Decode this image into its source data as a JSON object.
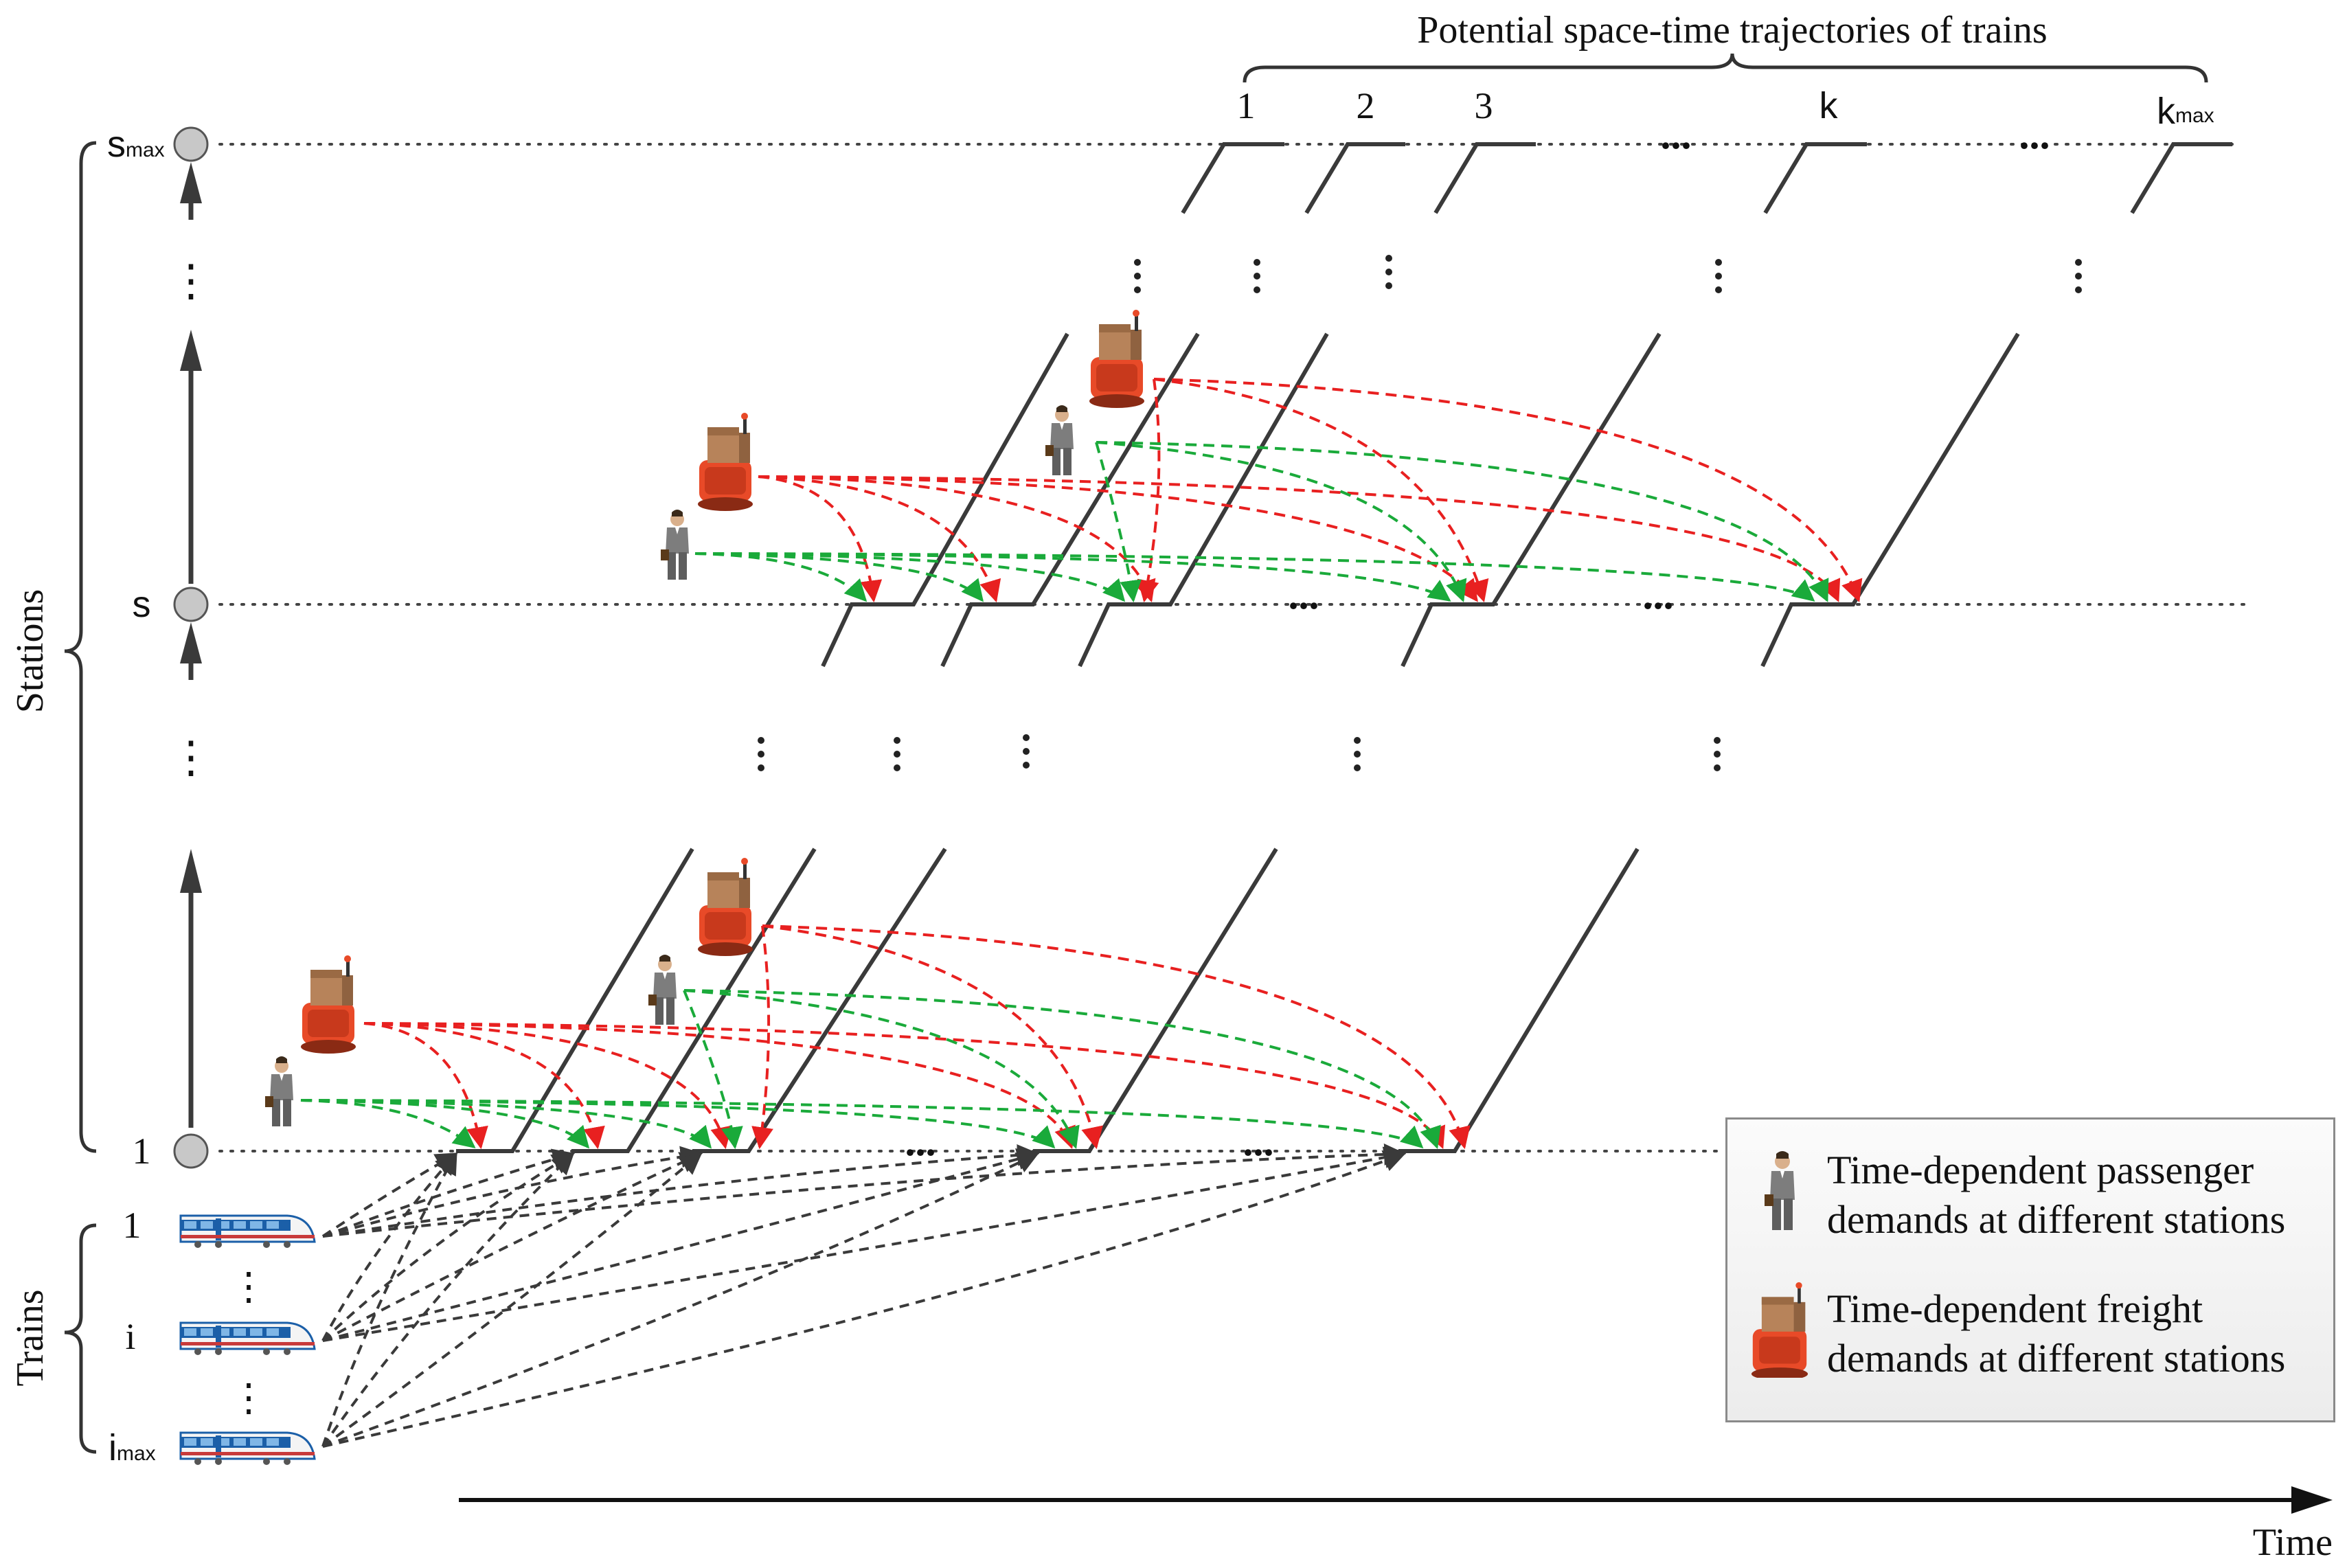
{
  "top_brace_label": "Potential space-time trajectories of trains",
  "trajectory_labels": {
    "k1": "1",
    "k2": "2",
    "k3": "3",
    "k": "k",
    "kmax_base": "k",
    "kmax_sub": "max",
    "ellipsis_a": "...",
    "ellipsis_b": "..."
  },
  "axis": {
    "stations_label": "Stations",
    "trains_label": "Trains",
    "time_label": "Time"
  },
  "stations": {
    "smax_base": "s",
    "smax_sub": "max",
    "s": "s",
    "first": "1",
    "vertical_dots": "⋮"
  },
  "trains": {
    "first": "1",
    "middle": "i",
    "imax_base": "i",
    "imax_sub": "max",
    "vertical_dots": "⋮"
  },
  "row_ellipsis": {
    "s_row_1": "...",
    "s_row_2": "...",
    "row1_1": "...",
    "row1_2": "..."
  },
  "legend": {
    "passenger_line1": "Time-dependent passenger",
    "passenger_line2": "demands at different stations",
    "freight_line1": "Time-dependent freight",
    "freight_line2": "demands at different stations"
  },
  "colors": {
    "line": "#3a3a3a",
    "freight_arc": "#e82020",
    "passenger_arc": "#1aaa3a",
    "train_arc": "#3a3a3a",
    "node_fill": "#c8c8c8"
  }
}
